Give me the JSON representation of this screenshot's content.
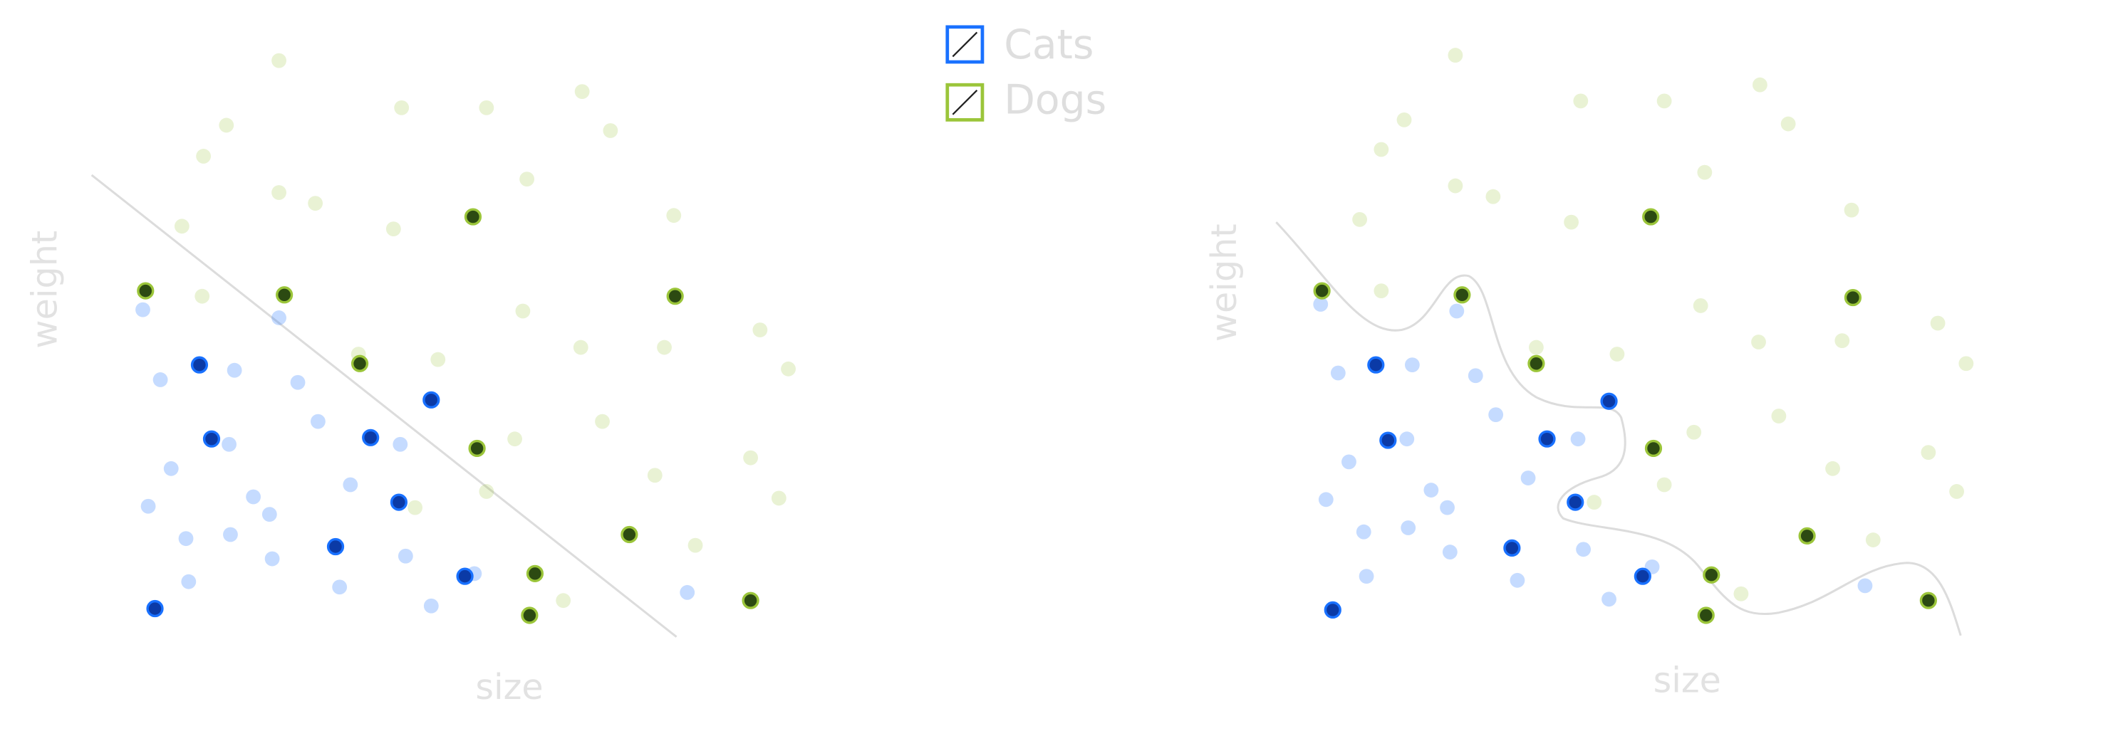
{
  "chart_data": [
    {
      "type": "scatter",
      "x_label": "size",
      "y_label": "weight",
      "xlim": [
        0,
        500
      ],
      "ylim": [
        0,
        440
      ],
      "series": [
        {
          "name": "Cats",
          "color": "#1971ff",
          "x": [
            6,
            107,
            74,
            19,
            121,
            136,
            70,
            27,
            197,
            160,
            88,
            10,
            100,
            38,
            71,
            102,
            201,
            40,
            152,
            220,
            410,
            252,
            48,
            220,
            57,
            175,
            196,
            149,
            245,
            15
          ],
          "values": [
            240,
            234,
            195,
            188,
            186,
            157,
            140,
            122,
            140,
            110,
            101,
            94,
            88,
            70,
            73,
            55,
            57,
            38,
            34,
            20,
            30,
            44,
            199,
            173,
            144,
            145,
            97,
            64,
            42,
            18
          ],
          "highlight": [
            false,
            false,
            false,
            false,
            false,
            false,
            false,
            false,
            false,
            false,
            false,
            false,
            false,
            false,
            false,
            false,
            false,
            false,
            false,
            false,
            false,
            false,
            true,
            true,
            true,
            true,
            true,
            true,
            true,
            true
          ]
        },
        {
          "name": "Dogs",
          "color": "#9bc53a",
          "x": [
            107,
            198,
            261,
            332,
            353,
            68,
            51,
            291,
            107,
            134,
            35,
            192,
            400,
            50,
            288,
            464,
            485,
            331,
            393,
            166,
            225,
            347,
            282,
            386,
            457,
            478,
            261,
            208,
            416,
            318,
            251,
            8,
            111,
            401,
            167,
            254,
            367,
            297,
            293,
            457
          ],
          "values": [
            425,
            390,
            390,
            402,
            373,
            377,
            354,
            337,
            327,
            319,
            302,
            300,
            310,
            250,
            239,
            225,
            196,
            212,
            212,
            207,
            203,
            157,
            144,
            117,
            130,
            100,
            105,
            93,
            65,
            24,
            309,
            254,
            251,
            250,
            200,
            137,
            73,
            44,
            13,
            24
          ],
          "highlight": [
            false,
            false,
            false,
            false,
            false,
            false,
            false,
            false,
            false,
            false,
            false,
            false,
            false,
            false,
            false,
            false,
            false,
            false,
            false,
            false,
            false,
            false,
            false,
            false,
            false,
            false,
            false,
            false,
            false,
            false,
            true,
            true,
            true,
            true,
            true,
            true,
            true,
            true,
            true,
            true
          ]
        }
      ]
    },
    {
      "type": "scatter",
      "x_label": "size",
      "y_label": "weight",
      "xlim": [
        0,
        500
      ],
      "ylim": [
        0,
        440
      ],
      "series": [
        {
          "color": "#1971ff",
          "x": [
            7,
            108,
            75,
            20,
            122,
            137,
            71,
            28,
            198,
            161,
            89,
            11,
            101,
            39,
            72,
            103,
            202,
            41,
            153,
            221,
            411,
            253,
            48,
            221,
            57,
            175,
            196,
            149,
            246,
            16
          ],
          "values": [
            244,
            239,
            199,
            193,
            191,
            162,
            144,
            127,
            144,
            115,
            106,
            99,
            93,
            75,
            78,
            60,
            62,
            42,
            39,
            25,
            35,
            49,
            199,
            172,
            143,
            144,
            97,
            63,
            42,
            17
          ],
          "highlight": [
            false,
            false,
            false,
            false,
            false,
            false,
            false,
            false,
            false,
            false,
            false,
            false,
            false,
            false,
            false,
            false,
            false,
            false,
            false,
            false,
            false,
            false,
            true,
            true,
            true,
            true,
            true,
            true,
            true,
            true
          ]
        },
        {
          "color": "#9bc53a",
          "x": [
            107,
            200,
            262,
            333,
            354,
            69,
            52,
            292,
            107,
            135,
            36,
            193,
            401,
            52,
            289,
            465,
            486,
            332,
            394,
            167,
            227,
            347,
            284,
            387,
            458,
            479,
            262,
            210,
            417,
            319,
            252,
            8,
            112,
            402,
            167,
            254,
            368,
            297,
            293,
            458
          ],
          "values": [
            429,
            395,
            395,
            407,
            378,
            381,
            359,
            342,
            332,
            324,
            307,
            305,
            314,
            254,
            243,
            230,
            200,
            216,
            217,
            212,
            207,
            161,
            149,
            122,
            134,
            105,
            110,
            97,
            69,
            29,
            309,
            254,
            251,
            249,
            200,
            137,
            72,
            43,
            13,
            24
          ],
          "highlight": [
            false,
            false,
            false,
            false,
            false,
            false,
            false,
            false,
            false,
            false,
            false,
            false,
            false,
            false,
            false,
            false,
            false,
            false,
            false,
            false,
            false,
            false,
            false,
            false,
            false,
            false,
            false,
            false,
            false,
            false,
            true,
            true,
            true,
            true,
            true,
            true,
            true,
            true,
            true,
            true
          ]
        }
      ]
    }
  ]
}
